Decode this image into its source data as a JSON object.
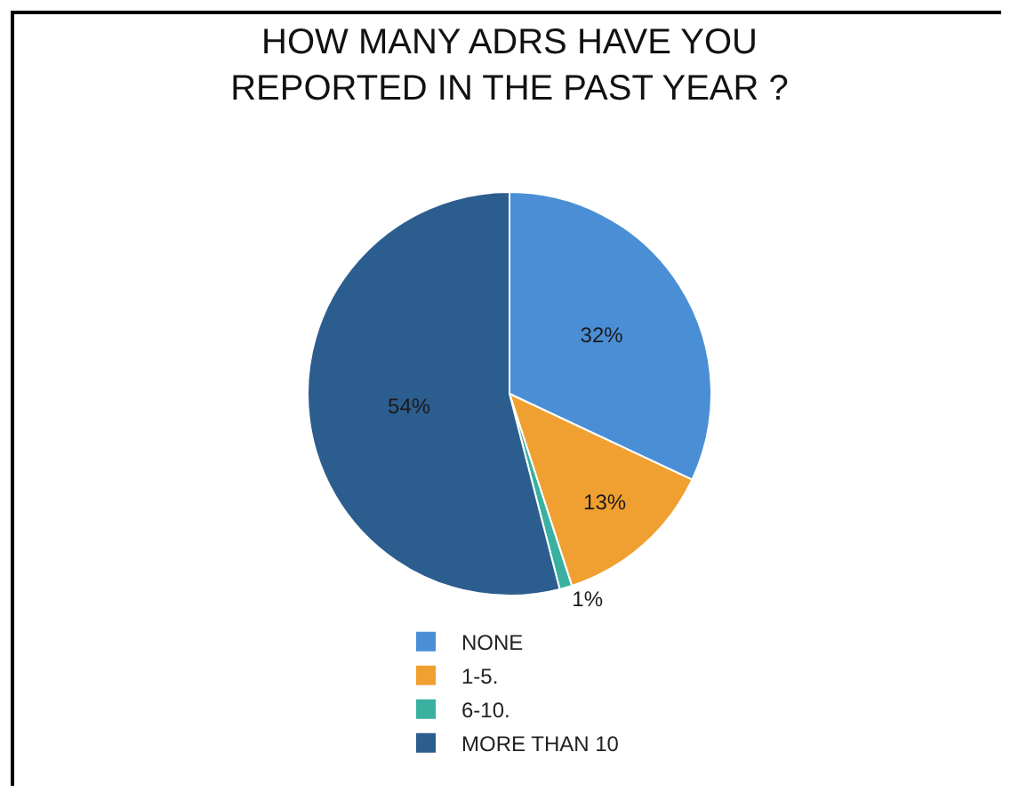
{
  "chart_data": {
    "type": "pie",
    "title": "HOW MANY ADRS HAVE YOU REPORTED IN THE PAST YEAR ?",
    "categories": [
      "NONE",
      "1-5.",
      "6-10.",
      "MORE THAN 10"
    ],
    "values": [
      32,
      13,
      1,
      54
    ],
    "value_labels": [
      "32%",
      "13%",
      "1%",
      "54%"
    ],
    "colors": [
      "#4a8fd6",
      "#f0a030",
      "#3ab0a0",
      "#2c5d8f"
    ],
    "legend": "bottom"
  }
}
